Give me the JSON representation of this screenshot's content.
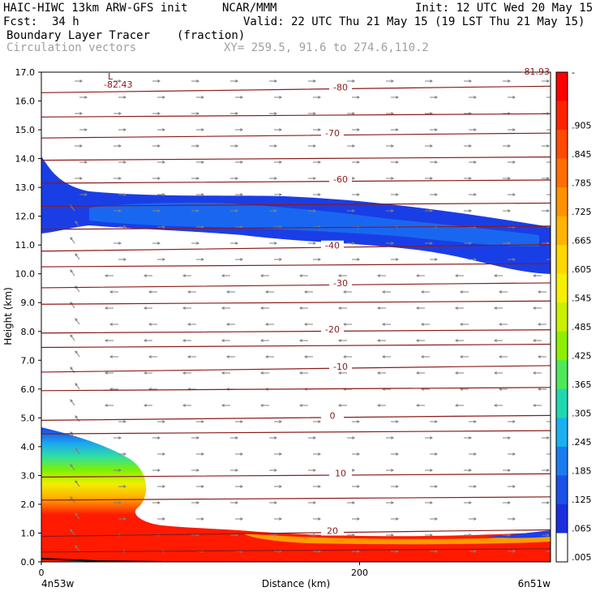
{
  "header": {
    "model": "HAIC-HIWC 13km ARW-GFS init",
    "agency": "NCAR/MMM",
    "init": "Init: 12 UTC Wed 20 May 15",
    "fcst_label": "Fcst:",
    "fcst_value": "34 h",
    "valid": "Valid: 22 UTC Thu 21 May 15 (19 LST Thu 21 May 15)",
    "field": "Boundary Layer Tracer",
    "units": "(fraction)",
    "vectors": "Circulation vectors",
    "xy": "XY= 259.5, 91.6 to 274.6,110.2"
  },
  "chart_data": {
    "type": "heatmap",
    "xlabel": "Distance (km)",
    "ylabel": "Height (km)",
    "xlim": [
      0,
      320
    ],
    "ylim": [
      0,
      17
    ],
    "x_ticks": [
      "0",
      "200"
    ],
    "y_ticks": [
      "0.0",
      "1.0",
      "2.0",
      "3.0",
      "4.0",
      "5.0",
      "6.0",
      "7.0",
      "8.0",
      "9.0",
      "10.0",
      "11.0",
      "12.0",
      "13.0",
      "14.0",
      "15.0",
      "16.0",
      "17.0"
    ],
    "x_endpoints": {
      "left": "4n53w",
      "right": "6n51w"
    },
    "colorbar": {
      "labels": [
        "-",
        ".905",
        ".845",
        ".785",
        ".725",
        ".665",
        ".605",
        ".545",
        ".485",
        ".425",
        ".365",
        ".305",
        ".245",
        ".185",
        ".125",
        ".065",
        ".005"
      ],
      "colors": [
        "#ff0000",
        "#ff2200",
        "#ff4a00",
        "#ff6e00",
        "#ff9200",
        "#ffb400",
        "#ffd800",
        "#f6f000",
        "#c8f000",
        "#8ef000",
        "#4ee85a",
        "#20d8b0",
        "#1ab0f0",
        "#1a7cf0",
        "#1a52e8",
        "#1a2ee0",
        "#ffffff"
      ]
    },
    "temperature_contours": [
      {
        "label": "-80",
        "height_km": 16.4
      },
      {
        "label": "-70",
        "height_km": 14.8
      },
      {
        "label": "-60",
        "height_km": 13.2
      },
      {
        "label": "-40",
        "height_km": 10.9
      },
      {
        "label": "-30",
        "height_km": 9.6
      },
      {
        "label": "-20",
        "height_km": 8.0
      },
      {
        "label": "-10",
        "height_km": 6.7
      },
      {
        "label": "0",
        "height_km": 5.0
      },
      {
        "label": "10",
        "height_km": 3.0
      },
      {
        "label": "20",
        "height_km": 1.0
      }
    ],
    "min_label": "L",
    "min_value": "-82.43",
    "corner_label": "-81.93"
  }
}
